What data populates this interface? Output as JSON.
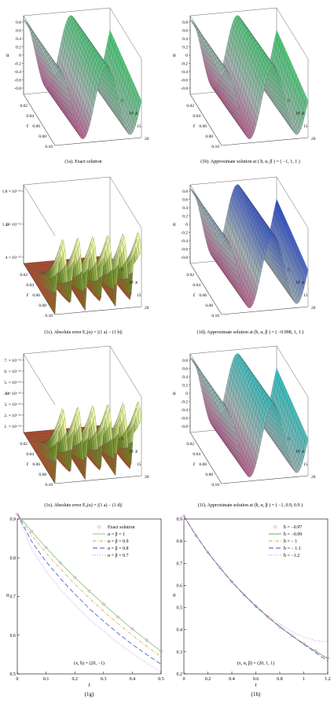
{
  "panels": [
    {
      "id": "1a",
      "caption": "(1a). Exact solution",
      "zlabel": "u",
      "zticks": [
        "0.8",
        "0.6",
        "0.4",
        "0.2",
        "0",
        "-0.2",
        "-0.4",
        "-0.6",
        "-0.8"
      ],
      "tlabel": "t",
      "tticks": [
        "0.02",
        "0.04",
        "0.06",
        "0.08",
        "0.10"
      ],
      "xlabel": "x",
      "xticks": [
        "5",
        "10",
        "15",
        "20"
      ],
      "colors": {
        "bottom": "#c82b7e",
        "mid": "#a6b4b3",
        "top": "#46c873"
      }
    },
    {
      "id": "1b",
      "caption": "(1b). Approximate solution at ( ħ, α, β ) = ( −1, 1, 1 )",
      "zlabel": "u",
      "zticks": [
        "0.8",
        "0.6",
        "0.4",
        "0.2",
        "0",
        "-0.2",
        "-0.4",
        "-0.6",
        "-0.8"
      ],
      "tlabel": "t",
      "tticks": [
        "0.02",
        "0.04",
        "0.06",
        "0.08",
        "0.10"
      ],
      "xlabel": "x",
      "xticks": [
        "5",
        "10",
        "15",
        "20"
      ],
      "colors": {
        "bottom": "#c82b7e",
        "mid": "#a6b4b3",
        "top": "#46c873"
      }
    },
    {
      "id": "1c",
      "caption": "(1c). Absolute error  E₃(u) = |(1 a) − (1 b)|",
      "zlabel": "u",
      "zticks": [
        "1.8 × 10⁻¹¹",
        "1.2 × 10⁻¹¹",
        "4 × 10⁻¹²"
      ],
      "tlabel": "t",
      "tticks": [
        "0.02",
        "0.04",
        "0.06",
        "0.08",
        "0.10"
      ],
      "xlabel": "x",
      "xticks": [
        "5",
        "10",
        "15",
        "20"
      ],
      "colors": {
        "bottom": "#c0392b",
        "mid": "#6a8a2a",
        "top": "#e8f5a0"
      }
    },
    {
      "id": "1d",
      "caption": "(1d). Approximate solution at (ħ, α, β ) = ( −0.998, 1, 1 )",
      "zlabel": "u",
      "zticks": [
        "0.8",
        "0.6",
        "0.4",
        "0.2",
        "0",
        "-0.2",
        "-0.4",
        "-0.6",
        "-0.8"
      ],
      "tlabel": "t",
      "tticks": [
        "0.02",
        "0.04",
        "0.06",
        "0.08",
        "0.10"
      ],
      "xlabel": "x",
      "xticks": [
        "5",
        "10",
        "15",
        "20"
      ],
      "colors": {
        "bottom": "#c82b7e",
        "mid": "#a6b4b3",
        "top": "#2f4fc8"
      }
    },
    {
      "id": "1e",
      "caption": "(1e). Absolute error  E₃(u) = |(1 a) − (1 d)|",
      "zlabel": "u",
      "zticks": [
        "7. × 10⁻¹²",
        "6. × 10⁻¹²",
        "5. × 10⁻¹²",
        "4. × 10⁻¹²",
        "3. × 10⁻¹²",
        "2. × 10⁻¹²",
        "1. × 10⁻¹²"
      ],
      "tlabel": "t",
      "tticks": [
        "0.02",
        "0.04",
        "0.06",
        "0.08",
        "0.10"
      ],
      "xlabel": "x",
      "xticks": [
        "5",
        "10",
        "15",
        "20"
      ],
      "colors": {
        "bottom": "#c0392b",
        "mid": "#6a8a2a",
        "top": "#e8f5a0"
      }
    },
    {
      "id": "1f",
      "caption": "(1f). Approximate solution at (ħ, α, β ) = ( −1, 0.9, 0.9 )",
      "zlabel": "u",
      "zticks": [
        "0.8",
        "0.6",
        "0.4",
        "0.2",
        "0",
        "-0.2",
        "-0.4",
        "-0.6",
        "-0.8"
      ],
      "tlabel": "t",
      "tticks": [
        "0.02",
        "0.04",
        "0.06",
        "0.08",
        "0.10"
      ],
      "xlabel": "x",
      "xticks": [
        "5",
        "10",
        "15",
        "20"
      ],
      "colors": {
        "bottom": "#c82b7e",
        "mid": "#a6b4b3",
        "top": "#2fc0c0"
      }
    }
  ],
  "chart_data": [
    {
      "type": "line",
      "id": "1g",
      "caption": "(1g)",
      "xlabel": "t",
      "ylabel": "u",
      "xlim": [
        0,
        0.5
      ],
      "ylim": [
        0.5,
        0.9
      ],
      "xticks": [
        "0",
        "0.1",
        "0.2",
        "0.3",
        "0.4",
        "0.5"
      ],
      "yticks": [
        "0.9",
        "0.8",
        "0.7",
        "0.6",
        "0.5"
      ],
      "annotation": "(x, ħ) = (20, −1)",
      "legend_position": "top-right",
      "x": [
        0,
        0.05,
        0.1,
        0.15,
        0.2,
        0.25,
        0.3,
        0.35,
        0.4,
        0.45,
        0.5
      ],
      "series": [
        {
          "name": "Exact solution",
          "style": "circles",
          "color": "#e58aa0",
          "values": [
            0.913,
            0.868,
            0.826,
            0.787,
            0.749,
            0.714,
            0.68,
            0.647,
            0.616,
            0.587,
            0.558
          ]
        },
        {
          "name": "α = β = 1",
          "style": "solid",
          "color": "#7fc27f",
          "values": [
            0.913,
            0.868,
            0.826,
            0.787,
            0.749,
            0.714,
            0.68,
            0.647,
            0.616,
            0.587,
            0.558
          ]
        },
        {
          "name": "α = β = 0.9",
          "style": "dashdot",
          "color": "#c8a641",
          "values": [
            0.913,
            0.858,
            0.812,
            0.771,
            0.732,
            0.696,
            0.662,
            0.63,
            0.6,
            0.571,
            0.544
          ]
        },
        {
          "name": "α = β = 0.8",
          "style": "longdash",
          "color": "#3d4fd8",
          "values": [
            0.913,
            0.842,
            0.79,
            0.746,
            0.706,
            0.669,
            0.636,
            0.605,
            0.576,
            0.55,
            0.525
          ]
        },
        {
          "name": "α = β = 0.7",
          "style": "dotted",
          "color": "#c080c8",
          "values": [
            0.913,
            0.822,
            0.765,
            0.718,
            0.678,
            0.642,
            0.61,
            0.58,
            0.553,
            0.528,
            0.505
          ]
        }
      ]
    },
    {
      "type": "line",
      "id": "1h",
      "caption": "(1h)",
      "xlabel": "t",
      "ylabel": "u",
      "xlim": [
        0,
        1.2
      ],
      "ylim": [
        0.2,
        0.9
      ],
      "xticks": [
        "0",
        "0.2",
        "0.4",
        "0.6",
        "0.8",
        "1",
        "1.2"
      ],
      "yticks": [
        "0.9",
        "0.8",
        "0.7",
        "0.6",
        "0.5",
        "0.4",
        "0.3",
        "0.2"
      ],
      "annotation": "(x, α, β) = (20, 1, 1)",
      "legend_position": "top-right",
      "x": [
        0,
        0.1,
        0.2,
        0.3,
        0.4,
        0.5,
        0.6,
        0.7,
        0.8,
        0.9,
        1.0,
        1.1,
        1.2
      ],
      "series": [
        {
          "name": "ħ = −0.97",
          "style": "circles",
          "color": "#e58aa0",
          "values": [
            0.913,
            0.826,
            0.749,
            0.68,
            0.616,
            0.558,
            0.505,
            0.457,
            0.413,
            0.373,
            0.337,
            0.304,
            0.272
          ]
        },
        {
          "name": "ħ = −0.99",
          "style": "solid",
          "color": "#4aa84a",
          "values": [
            0.913,
            0.826,
            0.749,
            0.68,
            0.616,
            0.558,
            0.505,
            0.457,
            0.413,
            0.373,
            0.336,
            0.302,
            0.27
          ]
        },
        {
          "name": "ħ = − 1",
          "style": "dashdot",
          "color": "#c8a641",
          "values": [
            0.913,
            0.826,
            0.749,
            0.68,
            0.616,
            0.558,
            0.505,
            0.457,
            0.413,
            0.373,
            0.336,
            0.301,
            0.268
          ]
        },
        {
          "name": "ħ = − 1.1",
          "style": "longdash",
          "color": "#3d4fd8",
          "values": [
            0.913,
            0.826,
            0.749,
            0.68,
            0.616,
            0.558,
            0.506,
            0.458,
            0.414,
            0.373,
            0.334,
            0.296,
            0.258
          ]
        },
        {
          "name": "ħ = −1.2",
          "style": "dotted",
          "color": "#c080c8",
          "values": [
            0.913,
            0.826,
            0.75,
            0.681,
            0.618,
            0.561,
            0.51,
            0.465,
            0.425,
            0.392,
            0.366,
            0.35,
            0.345
          ]
        }
      ]
    }
  ]
}
